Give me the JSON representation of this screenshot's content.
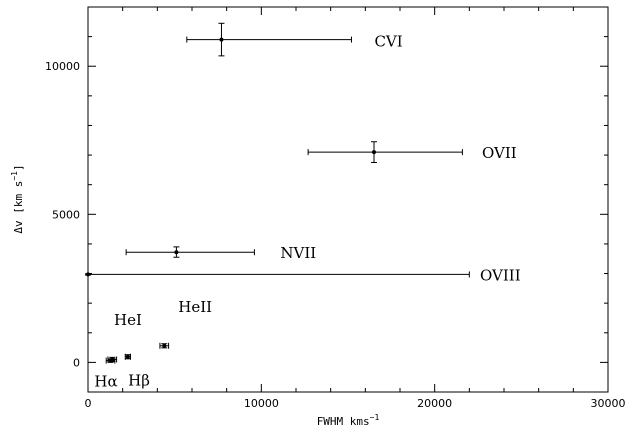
{
  "chart_data": {
    "type": "scatter",
    "xlabel": "FWHM kms",
    "xlabel_sup": "−1",
    "ylabel": "Δv [km s",
    "ylabel_sup": "−1",
    "ylabel_end": "]",
    "xlim": [
      0,
      30000
    ],
    "ylim": [
      -1000,
      12000
    ],
    "x_ticks": [
      0,
      10000,
      20000,
      30000
    ],
    "x_tick_labels": [
      "0",
      "10000",
      "20000",
      "30000"
    ],
    "y_ticks": [
      0,
      5000,
      10000
    ],
    "y_tick_labels": [
      "0",
      "5000",
      "10000"
    ],
    "grid": false,
    "points": [
      {
        "label": "CVI",
        "x": 7700,
        "y": 10900,
        "x_err": [
          5700,
          15200
        ],
        "y_err": [
          10350,
          11450
        ]
      },
      {
        "label": "OVII",
        "x": 16500,
        "y": 7100,
        "x_err": [
          12700,
          21600
        ],
        "y_err": [
          6750,
          7450
        ]
      },
      {
        "label": "NVII",
        "x": 5100,
        "y": 3720,
        "x_err": [
          2200,
          9600
        ],
        "y_err": [
          3550,
          3900
        ]
      },
      {
        "label": "OVIII",
        "x": 0,
        "y": 2970,
        "x_err": [
          0,
          22000
        ],
        "y_err": [
          2950,
          2990
        ]
      },
      {
        "label": "HeII",
        "x": 4400,
        "y": 560,
        "x_err": [
          4150,
          4650
        ],
        "y_err": [
          490,
          630
        ]
      },
      {
        "label": "HeI",
        "x": 2300,
        "y": 190,
        "x_err": [
          2150,
          2450
        ],
        "y_err": [
          120,
          260
        ]
      },
      {
        "label": "Hβ",
        "x": 1400,
        "y": 100,
        "x_err": [
          1150,
          1650
        ],
        "y_err": [
          30,
          170
        ]
      },
      {
        "label": "Hα",
        "x": 1300,
        "y": 60,
        "x_err": [
          1050,
          1550
        ],
        "y_err": [
          0,
          120
        ]
      }
    ]
  }
}
